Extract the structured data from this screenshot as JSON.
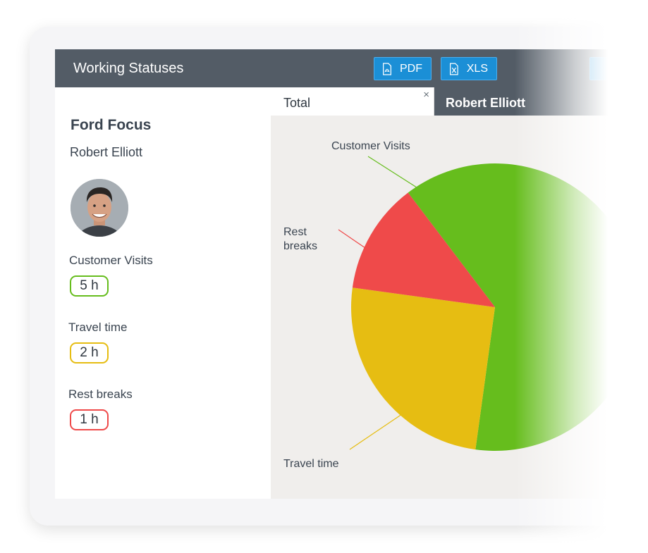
{
  "window": {
    "title": "Working Statuses",
    "buttons": {
      "pdf": "PDF",
      "xls": "XLS"
    }
  },
  "details": {
    "vehicle": "Ford Focus",
    "driver": "Robert Elliott",
    "stats": [
      {
        "label": "Customer Visits",
        "value": "5 h",
        "color": "#66bd1d"
      },
      {
        "label": "Travel time",
        "value": "2 h",
        "color": "#e6bd12"
      },
      {
        "label": "Rest breaks",
        "value": "1 h",
        "color": "#ef4a4a"
      }
    ]
  },
  "tabs": [
    {
      "label": "Total",
      "close": "×",
      "active": true
    },
    {
      "label": "Robert Elliott",
      "active": false
    }
  ],
  "chart_data": {
    "type": "pie",
    "slices": [
      {
        "label": "Customer Visits",
        "value": 5,
        "color": "#66bd1d"
      },
      {
        "label": "Travel time",
        "value": 2,
        "color": "#e6bd12"
      },
      {
        "label": "Rest breaks",
        "value": 1,
        "color": "#ef4a4a"
      }
    ],
    "label_lines": [
      "Customer Visits",
      "Rest|breaks",
      "Travel time"
    ]
  },
  "colors": {
    "titlebar": "#535c66",
    "accent_button": "#1b8fd6",
    "chart_bg": "#f0eeec"
  }
}
